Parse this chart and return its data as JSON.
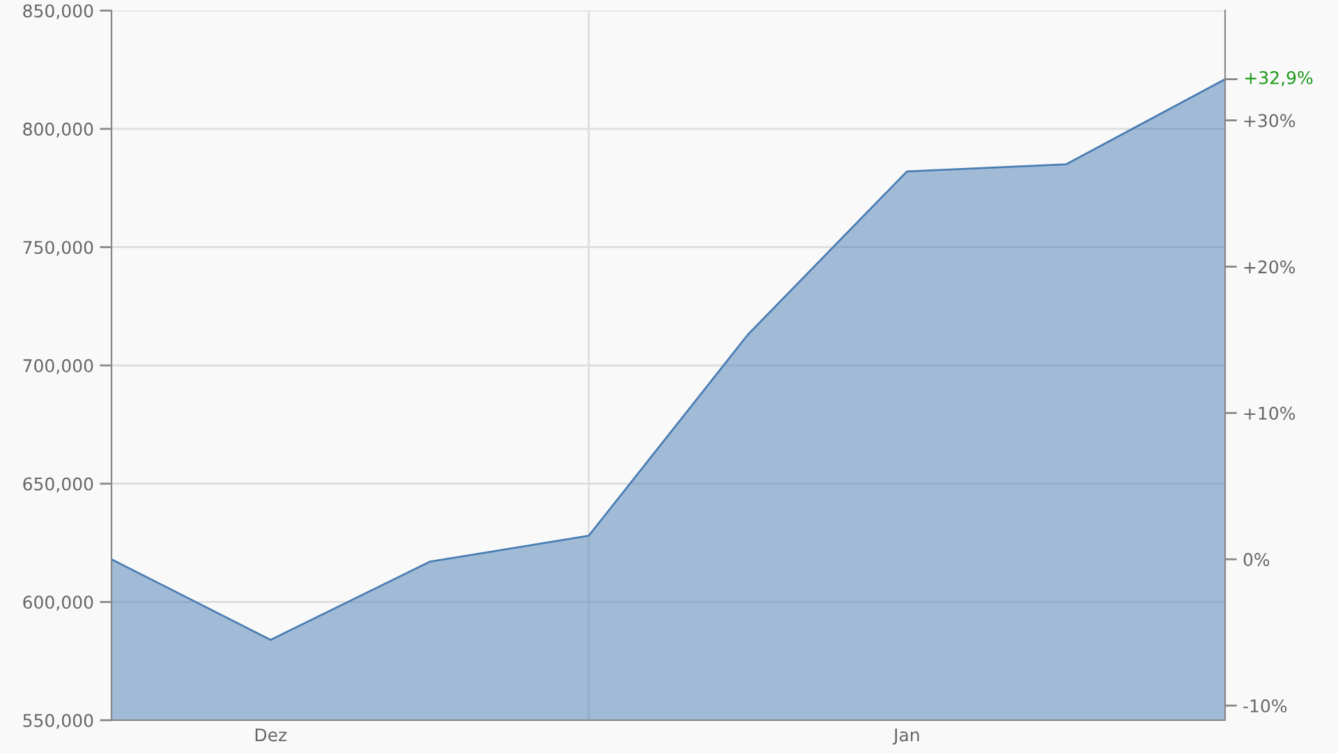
{
  "chart_data": {
    "type": "area",
    "categories": [
      null,
      "Dez",
      null,
      null,
      null,
      "Jan",
      null,
      null
    ],
    "values": [
      618000,
      584000,
      617000,
      628000,
      713000,
      782000,
      785000,
      821000
    ],
    "color": "#4a7db3",
    "ylim": [
      550000,
      850000
    ],
    "yticks": [
      {
        "value": 550000,
        "label": "550,000"
      },
      {
        "value": 600000,
        "label": "600,000"
      },
      {
        "value": 650000,
        "label": "650,000"
      },
      {
        "value": 700000,
        "label": "700,000"
      },
      {
        "value": 750000,
        "label": "750,000"
      },
      {
        "value": 800000,
        "label": "800,000"
      },
      {
        "value": 850000,
        "label": "850,000"
      }
    ],
    "y2lim": [
      -11,
      37.5
    ],
    "y2ticks": [
      {
        "value": -10,
        "label": "-10%"
      },
      {
        "value": 0,
        "label": "0%"
      },
      {
        "value": 10,
        "label": "+10%"
      },
      {
        "value": 20,
        "label": "+20%"
      },
      {
        "value": 30,
        "label": "+30%"
      }
    ],
    "annotations": [
      "+32,9%"
    ],
    "grid": true
  }
}
